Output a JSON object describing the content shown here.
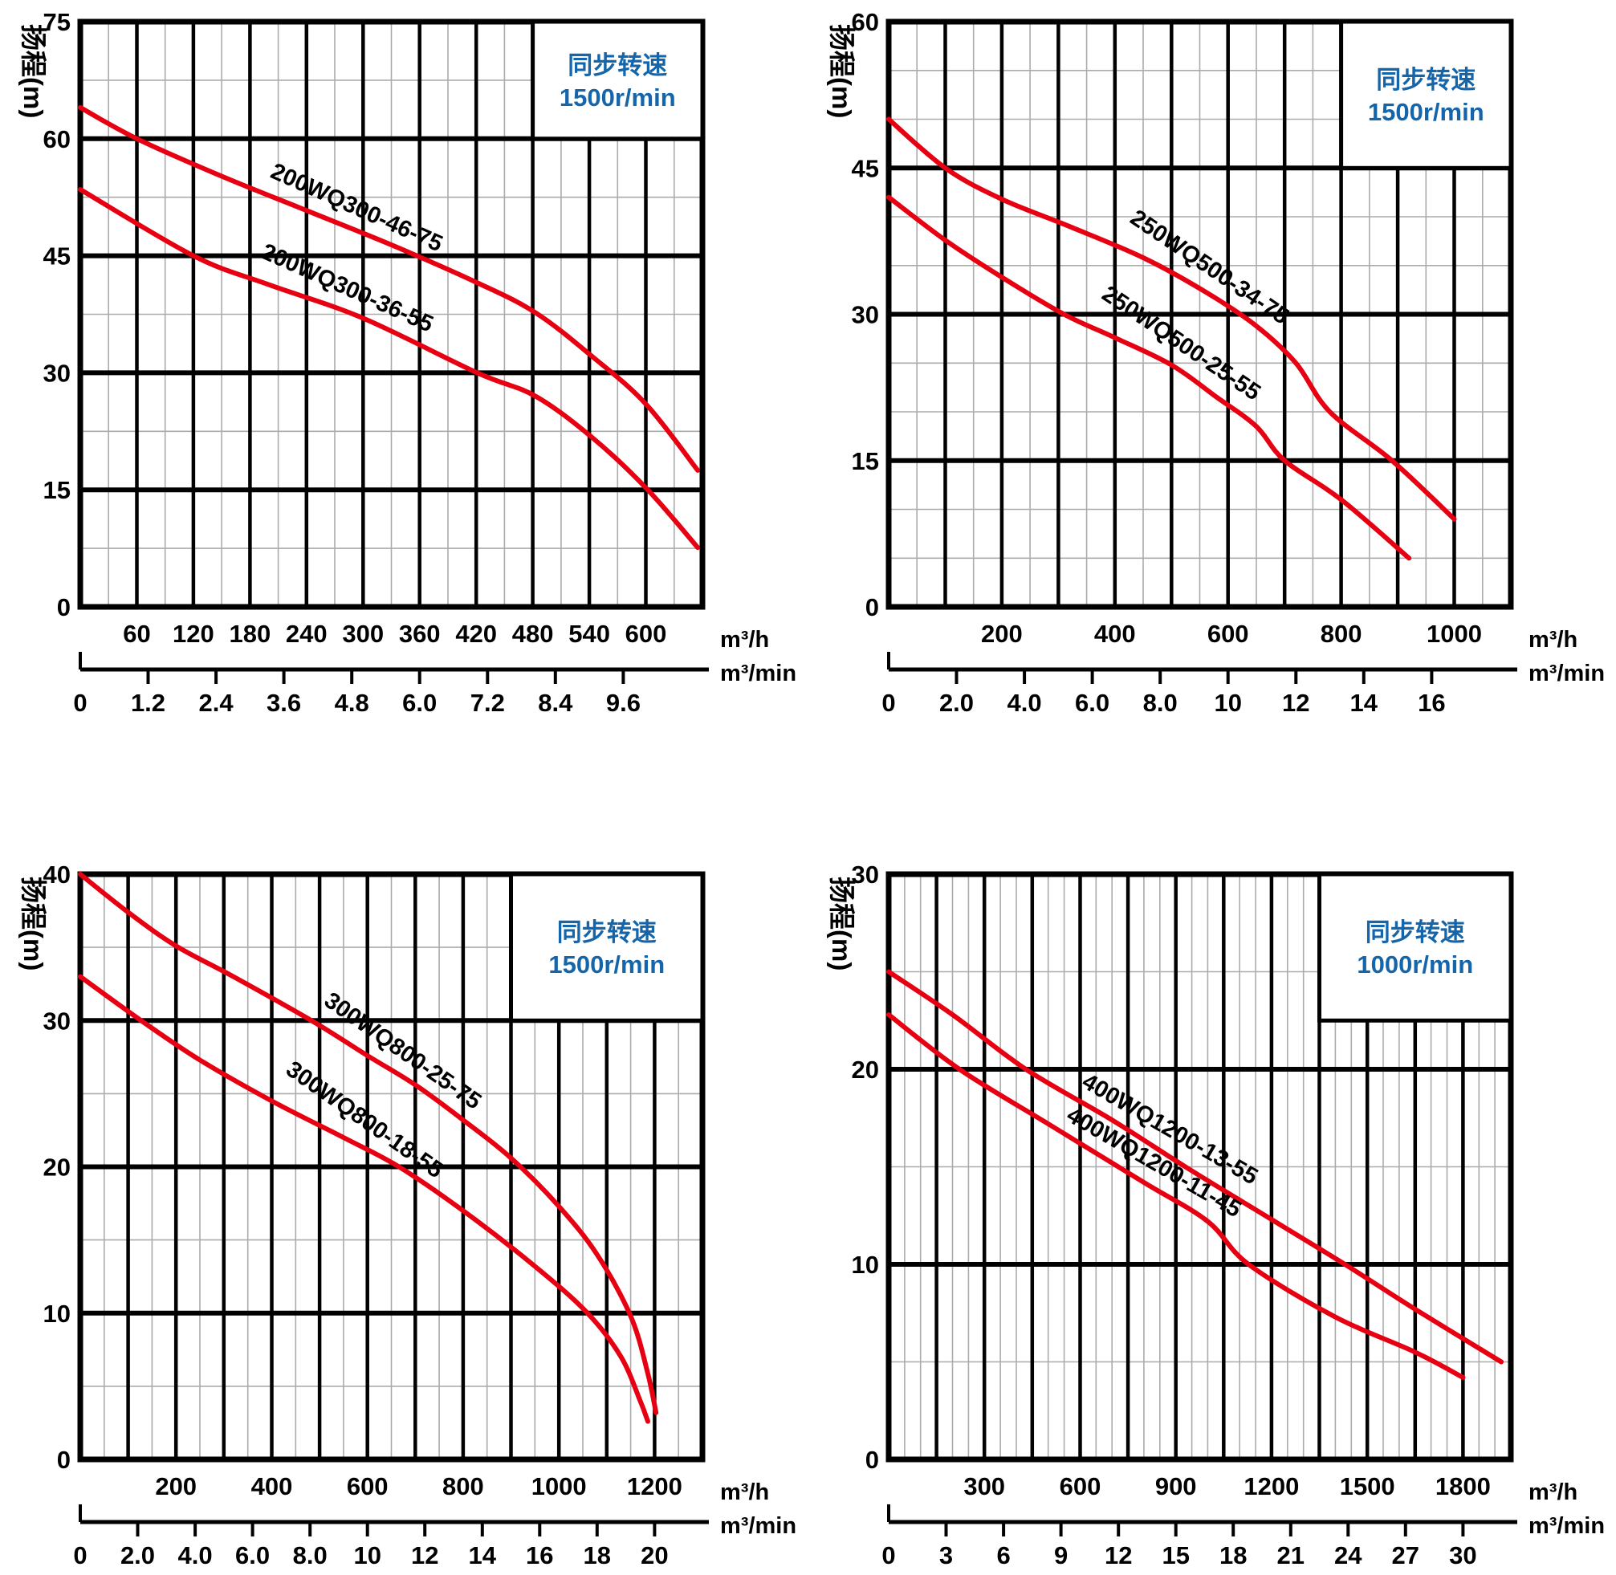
{
  "colors": {
    "curve": "#e60012",
    "legend_text": "#1565ab",
    "grid_minor": "#ababab",
    "grid_major": "#000000",
    "text": "#000000",
    "background": "#ffffff"
  },
  "chart_data": [
    {
      "type": "line",
      "ylabel": "扬程(m)",
      "legend": {
        "line1": "同步转速",
        "line2": "1500r/min"
      },
      "x_unit_hour": "m³/h",
      "x_unit_min": "m³/min",
      "xlim": [
        0,
        660
      ],
      "ylim": [
        0,
        75
      ],
      "x_major": 60,
      "x_minor": 30,
      "y_major": 15,
      "y_minor": 7.5,
      "y_ticks": [
        {
          "v": 75,
          "label": "75"
        },
        {
          "v": 60,
          "label": "60"
        },
        {
          "v": 45,
          "label": "45"
        },
        {
          "v": 30,
          "label": "30"
        },
        {
          "v": 15,
          "label": "15"
        },
        {
          "v": 0,
          "label": "0"
        }
      ],
      "hour_ticks": [
        {
          "flow": 60,
          "label": "60"
        },
        {
          "flow": 120,
          "label": "120"
        },
        {
          "flow": 180,
          "label": "180"
        },
        {
          "flow": 240,
          "label": "240"
        },
        {
          "flow": 300,
          "label": "300"
        },
        {
          "flow": 360,
          "label": "360"
        },
        {
          "flow": 420,
          "label": "420"
        },
        {
          "flow": 480,
          "label": "480"
        },
        {
          "flow": 540,
          "label": "540"
        },
        {
          "flow": 600,
          "label": "600"
        }
      ],
      "min_ticks": [
        {
          "flow": 0,
          "label": "0"
        },
        {
          "flow": 72,
          "label": "1.2"
        },
        {
          "flow": 144,
          "label": "2.4"
        },
        {
          "flow": 216,
          "label": "3.6"
        },
        {
          "flow": 288,
          "label": "4.8"
        },
        {
          "flow": 360,
          "label": "6.0"
        },
        {
          "flow": 432,
          "label": "7.2"
        },
        {
          "flow": 504,
          "label": "8.4"
        },
        {
          "flow": 576,
          "label": "9.6"
        }
      ],
      "legend_box": {
        "x1": 480,
        "y1": 60,
        "x2": 660,
        "y2": 75
      },
      "series": [
        {
          "name": "200WQ300-46-75",
          "points": [
            [
              0,
              64
            ],
            [
              60,
              60
            ],
            [
              150,
              55.2
            ],
            [
              240,
              50.8
            ],
            [
              330,
              46.4
            ],
            [
              420,
              41.6
            ],
            [
              483,
              37.7
            ],
            [
              544,
              32
            ],
            [
              600,
              26
            ],
            [
              655,
              17.5
            ]
          ],
          "label_pos": [
            290,
            50.3
          ],
          "label_angle": 24
        },
        {
          "name": "200WQ300-36-55",
          "points": [
            [
              0,
              53.5
            ],
            [
              120,
              45
            ],
            [
              200,
              41.3
            ],
            [
              300,
              37
            ],
            [
              421,
              30
            ],
            [
              483,
              27
            ],
            [
              545,
              21.5
            ],
            [
              602,
              15
            ],
            [
              655,
              7.6
            ]
          ],
          "label_pos": [
            280,
            40.0
          ],
          "label_angle": 24
        }
      ]
    },
    {
      "type": "line",
      "ylabel": "扬程(m)",
      "legend": {
        "line1": "同步转速",
        "line2": "1500r/min"
      },
      "x_unit_hour": "m³/h",
      "x_unit_min": "m³/min",
      "xlim": [
        0,
        1100
      ],
      "ylim": [
        0,
        60
      ],
      "x_major": 100,
      "x_minor": 50,
      "y_major": 15,
      "y_minor": 5,
      "y_ticks": [
        {
          "v": 60,
          "label": "60"
        },
        {
          "v": 45,
          "label": "45"
        },
        {
          "v": 30,
          "label": "30"
        },
        {
          "v": 15,
          "label": "15"
        },
        {
          "v": 0,
          "label": "0"
        }
      ],
      "hour_ticks": [
        {
          "flow": 200,
          "label": "200"
        },
        {
          "flow": 400,
          "label": "400"
        },
        {
          "flow": 600,
          "label": "600"
        },
        {
          "flow": 800,
          "label": "800"
        },
        {
          "flow": 1000,
          "label": "1000"
        }
      ],
      "min_ticks": [
        {
          "flow": 0,
          "label": "0"
        },
        {
          "flow": 120,
          "label": "2.0"
        },
        {
          "flow": 240,
          "label": "4.0"
        },
        {
          "flow": 360,
          "label": "6.0"
        },
        {
          "flow": 480,
          "label": "8.0"
        },
        {
          "flow": 600,
          "label": "10"
        },
        {
          "flow": 720,
          "label": "12"
        },
        {
          "flow": 840,
          "label": "14"
        },
        {
          "flow": 960,
          "label": "16"
        }
      ],
      "legend_box": {
        "x1": 800,
        "y1": 45,
        "x2": 1100,
        "y2": 60
      },
      "series": [
        {
          "name": "250WQ500-34-75",
          "points": [
            [
              0,
              50
            ],
            [
              100,
              45
            ],
            [
              200,
              41.8
            ],
            [
              320,
              39
            ],
            [
              450,
              35.8
            ],
            [
              560,
              32.3
            ],
            [
              650,
              28.8
            ],
            [
              720,
              25
            ],
            [
              780,
              20
            ],
            [
              890,
              15
            ],
            [
              1000,
              9
            ]
          ],
          "label_pos": [
            560,
            34.2
          ],
          "label_angle": 34
        },
        {
          "name": "250WQ500-25-55",
          "points": [
            [
              0,
              42
            ],
            [
              100,
              37.6
            ],
            [
              200,
              33.8
            ],
            [
              310,
              30
            ],
            [
              400,
              27.6
            ],
            [
              500,
              24.8
            ],
            [
              580,
              21.5
            ],
            [
              650,
              18.5
            ],
            [
              700,
              15
            ],
            [
              800,
              11
            ],
            [
              920,
              5
            ]
          ],
          "label_pos": [
            510,
            26.4
          ],
          "label_angle": 34
        }
      ]
    },
    {
      "type": "line",
      "ylabel": "扬程(m)",
      "legend": {
        "line1": "同步转速",
        "line2": "1500r/min"
      },
      "x_unit_hour": "m³/h",
      "x_unit_min": "m³/min",
      "xlim": [
        0,
        1300
      ],
      "ylim": [
        0,
        40
      ],
      "x_major": 100,
      "x_minor": 50,
      "y_major": 10,
      "y_minor": 5,
      "y_ticks": [
        {
          "v": 40,
          "label": "40"
        },
        {
          "v": 30,
          "label": "30"
        },
        {
          "v": 20,
          "label": "20"
        },
        {
          "v": 10,
          "label": "10"
        },
        {
          "v": 0,
          "label": "0"
        }
      ],
      "hour_ticks": [
        {
          "flow": 200,
          "label": "200"
        },
        {
          "flow": 400,
          "label": "400"
        },
        {
          "flow": 600,
          "label": "600"
        },
        {
          "flow": 800,
          "label": "800"
        },
        {
          "flow": 1000,
          "label": "1000"
        },
        {
          "flow": 1200,
          "label": "1200"
        }
      ],
      "min_ticks": [
        {
          "flow": 0,
          "label": "0"
        },
        {
          "flow": 120,
          "label": "2.0"
        },
        {
          "flow": 240,
          "label": "4.0"
        },
        {
          "flow": 360,
          "label": "6.0"
        },
        {
          "flow": 480,
          "label": "8.0"
        },
        {
          "flow": 600,
          "label": "10"
        },
        {
          "flow": 720,
          "label": "12"
        },
        {
          "flow": 840,
          "label": "14"
        },
        {
          "flow": 960,
          "label": "16"
        },
        {
          "flow": 1080,
          "label": "18"
        },
        {
          "flow": 1200,
          "label": "20"
        }
      ],
      "legend_box": {
        "x1": 900,
        "y1": 30,
        "x2": 1300,
        "y2": 40
      },
      "series": [
        {
          "name": "300WQ800-25-75",
          "points": [
            [
              0,
              40
            ],
            [
              100,
              37.4
            ],
            [
              200,
              35.1
            ],
            [
              320,
              33
            ],
            [
              483,
              30
            ],
            [
              600,
              27.6
            ],
            [
              700,
              25.6
            ],
            [
              800,
              23.2
            ],
            [
              900,
              20.6
            ],
            [
              1000,
              17.3
            ],
            [
              1080,
              14
            ],
            [
              1150,
              9.8
            ],
            [
              1185,
              6
            ],
            [
              1203,
              3.2
            ]
          ],
          "label_pos": [
            665,
            27.5
          ],
          "label_angle": 35
        },
        {
          "name": "300WQ800-18-55",
          "points": [
            [
              0,
              33
            ],
            [
              127,
              30
            ],
            [
              250,
              27.3
            ],
            [
              400,
              24.5
            ],
            [
              550,
              22
            ],
            [
              666,
              20
            ],
            [
              800,
              17
            ],
            [
              950,
              13.2
            ],
            [
              1060,
              10
            ],
            [
              1130,
              7
            ],
            [
              1170,
              4
            ],
            [
              1186,
              2.6
            ]
          ],
          "label_pos": [
            585,
            22.8
          ],
          "label_angle": 35
        }
      ]
    },
    {
      "type": "line",
      "ylabel": "扬程(m)",
      "legend": {
        "line1": "同步转速",
        "line2": "1000r/min"
      },
      "x_unit_hour": "m³/h",
      "x_unit_min": "m³/min",
      "xlim": [
        0,
        1950
      ],
      "ylim": [
        0,
        30
      ],
      "x_major": 150,
      "x_minor": 50,
      "y_major": 10,
      "y_minor": 5,
      "y_ticks": [
        {
          "v": 30,
          "label": "30"
        },
        {
          "v": 20,
          "label": "20"
        },
        {
          "v": 10,
          "label": "10"
        },
        {
          "v": 0,
          "label": "0"
        }
      ],
      "hour_ticks": [
        {
          "flow": 300,
          "label": "300"
        },
        {
          "flow": 600,
          "label": "600"
        },
        {
          "flow": 900,
          "label": "900"
        },
        {
          "flow": 1200,
          "label": "1200"
        },
        {
          "flow": 1500,
          "label": "1500"
        },
        {
          "flow": 1800,
          "label": "1800"
        }
      ],
      "min_ticks": [
        {
          "flow": 0,
          "label": "0"
        },
        {
          "flow": 180,
          "label": "3"
        },
        {
          "flow": 360,
          "label": "6"
        },
        {
          "flow": 540,
          "label": "9"
        },
        {
          "flow": 720,
          "label": "12"
        },
        {
          "flow": 900,
          "label": "15"
        },
        {
          "flow": 1080,
          "label": "18"
        },
        {
          "flow": 1260,
          "label": "21"
        },
        {
          "flow": 1440,
          "label": "24"
        },
        {
          "flow": 1620,
          "label": "27"
        },
        {
          "flow": 1800,
          "label": "30"
        }
      ],
      "legend_box": {
        "x1": 1350,
        "y1": 22.5,
        "x2": 1950,
        "y2": 30
      },
      "series": [
        {
          "name": "400WQ1200-13-55",
          "points": [
            [
              0,
              25
            ],
            [
              200,
              22.8
            ],
            [
              430,
              20
            ],
            [
              700,
              17.4
            ],
            [
              930,
              15
            ],
            [
              1200,
              12.3
            ],
            [
              1430,
              10
            ],
            [
              1650,
              7.7
            ],
            [
              1920,
              5
            ]
          ],
          "label_pos": [
            870,
            16.6
          ],
          "label_angle": 30
        },
        {
          "name": "400WQ1200-11-45",
          "points": [
            [
              0,
              22.8
            ],
            [
              222,
              20
            ],
            [
              500,
              17.2
            ],
            [
              800,
              14.2
            ],
            [
              1000,
              12.2
            ],
            [
              1128,
              10
            ],
            [
              1400,
              7.3
            ],
            [
              1650,
              5.5
            ],
            [
              1800,
              4.2
            ]
          ],
          "label_pos": [
            820,
            14.9
          ],
          "label_angle": 30
        }
      ]
    }
  ]
}
